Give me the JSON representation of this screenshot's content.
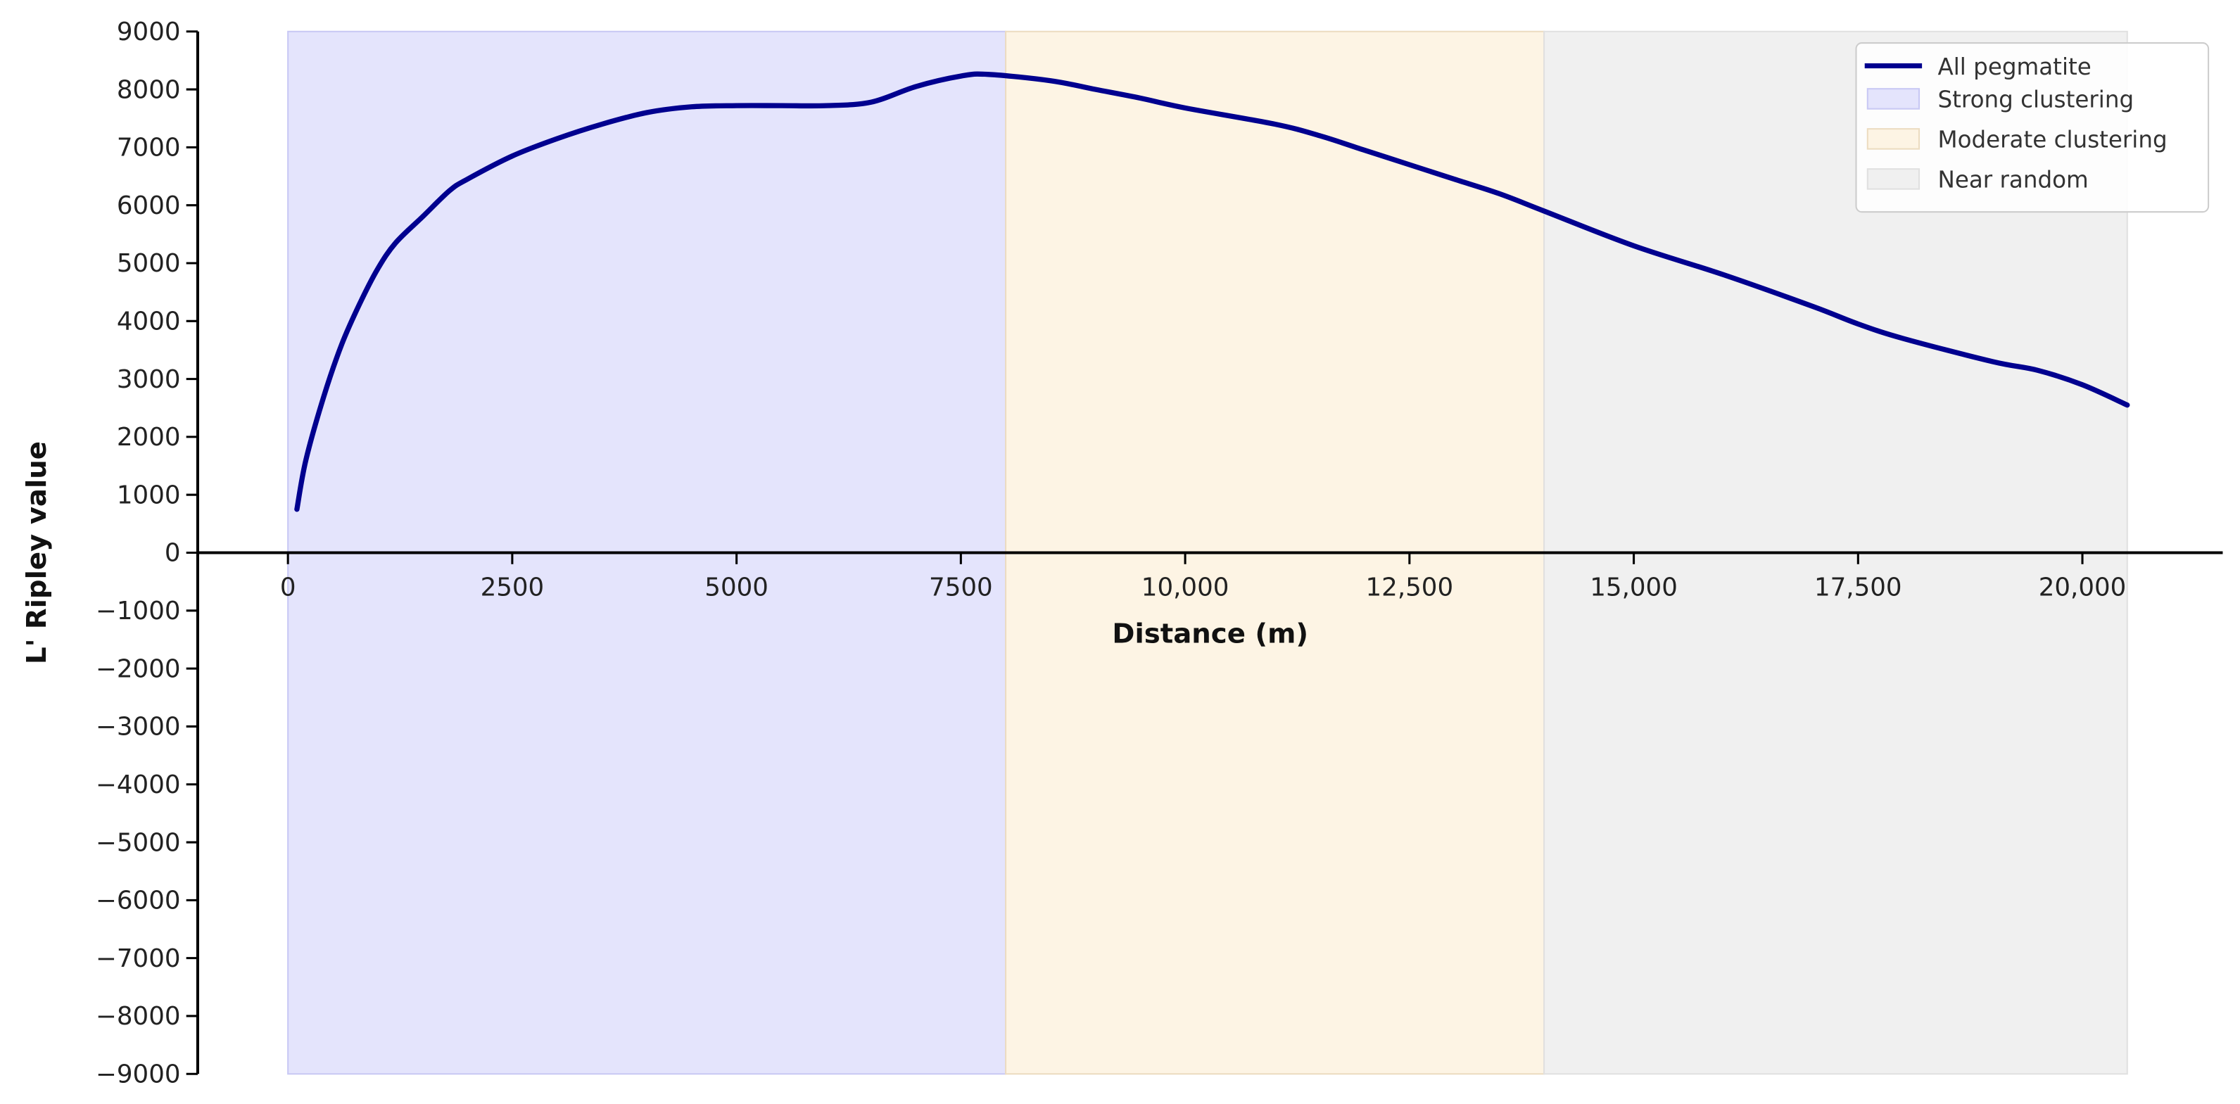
{
  "chart_data": {
    "type": "line",
    "title": "",
    "xlabel": "Distance (m)",
    "ylabel": "L' Ripley value",
    "xlim": [
      -1000,
      21500
    ],
    "ylim": [
      -9000,
      9000
    ],
    "grid": false,
    "legend_position": "top-right",
    "x_ticks": [
      0,
      2500,
      5000,
      7500,
      10000,
      12500,
      15000,
      17500,
      20000
    ],
    "x_tick_labels": [
      "0",
      "2500",
      "5000",
      "7500",
      "10,000",
      "12,500",
      "15,000",
      "17,500",
      "20,000"
    ],
    "y_ticks": [
      9000,
      8000,
      7000,
      6000,
      5000,
      4000,
      3000,
      2000,
      1000,
      0,
      -1000,
      -2000,
      -3000,
      -4000,
      -5000,
      -6000,
      -7000,
      -8000,
      -9000
    ],
    "y_tick_labels": [
      "9000",
      "8000",
      "7000",
      "6000",
      "5000",
      "4000",
      "3000",
      "2000",
      "1000",
      "0",
      "−1000",
      "−2000",
      "−3000",
      "−4000",
      "−5000",
      "−6000",
      "−7000",
      "−8000",
      "−9000"
    ],
    "series": [
      {
        "name": "All pegmatite",
        "color": "#00008f",
        "x": [
          100,
          200,
          400,
          600,
          800,
          1000,
          1200,
          1500,
          1800,
          2000,
          2500,
          3000,
          3500,
          4000,
          4500,
          5000,
          5500,
          6000,
          6500,
          7000,
          7500,
          7800,
          8500,
          9000,
          9500,
          10000,
          11000,
          11500,
          12000,
          12500,
          13000,
          13500,
          14000,
          15000,
          16000,
          17000,
          17500,
          18000,
          19000,
          19500,
          20000,
          20500
        ],
        "y": [
          750,
          1600,
          2700,
          3600,
          4300,
          4900,
          5350,
          5800,
          6250,
          6450,
          6850,
          7150,
          7400,
          7600,
          7700,
          7720,
          7720,
          7720,
          7780,
          8050,
          8230,
          8260,
          8150,
          8000,
          7850,
          7680,
          7400,
          7200,
          6950,
          6700,
          6450,
          6200,
          5900,
          5300,
          4800,
          4250,
          3950,
          3700,
          3300,
          3150,
          2900,
          2550
        ]
      }
    ],
    "bands": [
      {
        "name": "Strong clustering",
        "from": 0,
        "to": 8000,
        "color": "#e4e4fc",
        "edge": "#c8c8f4"
      },
      {
        "name": "Moderate clustering",
        "from": 8000,
        "to": 14000,
        "color": "#fdf4e4",
        "edge": "#ecdcc0"
      },
      {
        "name": "Near random",
        "from": 14000,
        "to": 20500,
        "color": "#f0f0f0",
        "edge": "#e0e0e0"
      }
    ]
  }
}
